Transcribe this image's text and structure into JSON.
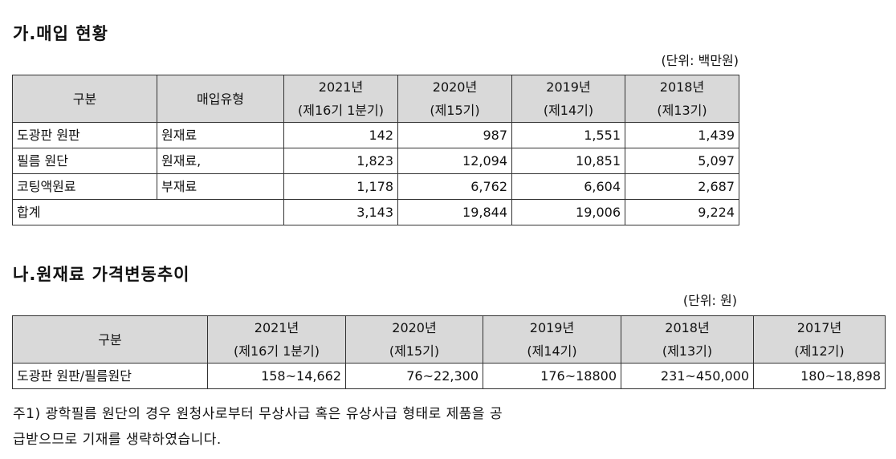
{
  "section_a": {
    "title": "가.매입 현황",
    "unit": "(단위: 백만원)",
    "headers": {
      "category": "구분",
      "type": "매입유형",
      "years": [
        {
          "year": "2021년",
          "period": "(제16기 1분기)"
        },
        {
          "year": "2020년",
          "period": "(제15기)"
        },
        {
          "year": "2019년",
          "period": "(제14기)"
        },
        {
          "year": "2018년",
          "period": "(제13기)"
        }
      ]
    },
    "rows": [
      {
        "category": "도광판 원판",
        "type": "원재료",
        "values": [
          "142",
          "987",
          "1,551",
          "1,439"
        ]
      },
      {
        "category": "필름 원단",
        "type": "원재료,",
        "values": [
          "1,823",
          "12,094",
          "10,851",
          "5,097"
        ]
      },
      {
        "category": "코팅액원료",
        "type": "부재료",
        "values": [
          "1,178",
          "6,762",
          "6,604",
          "2,687"
        ]
      }
    ],
    "total": {
      "label": "합계",
      "values": [
        "3,143",
        "19,844",
        "19,006",
        "9,224"
      ]
    }
  },
  "section_b": {
    "title": "나.원재료 가격변동추이",
    "unit": "(단위: 원)",
    "headers": {
      "category": "구분",
      "years": [
        {
          "year": "2021년",
          "period": "(제16기 1분기)"
        },
        {
          "year": "2020년",
          "period": "(제15기)"
        },
        {
          "year": "2019년",
          "period": "(제14기)"
        },
        {
          "year": "2018년",
          "period": "(제13기)"
        },
        {
          "year": "2017년",
          "period": "(제12기)"
        }
      ]
    },
    "row": {
      "category": "도광판 원판/필름원단",
      "values": [
        "158~14,662",
        "76~22,300",
        "176~18800",
        "231~450,000",
        "180~18,898"
      ]
    }
  },
  "note": {
    "line1": "주1) 광학필름 원단의 경우 원청사로부터 무상사급 혹은 유상사급 형태로 제품을 공",
    "line2": "급받으므로 기재를 생략하였습니다."
  }
}
